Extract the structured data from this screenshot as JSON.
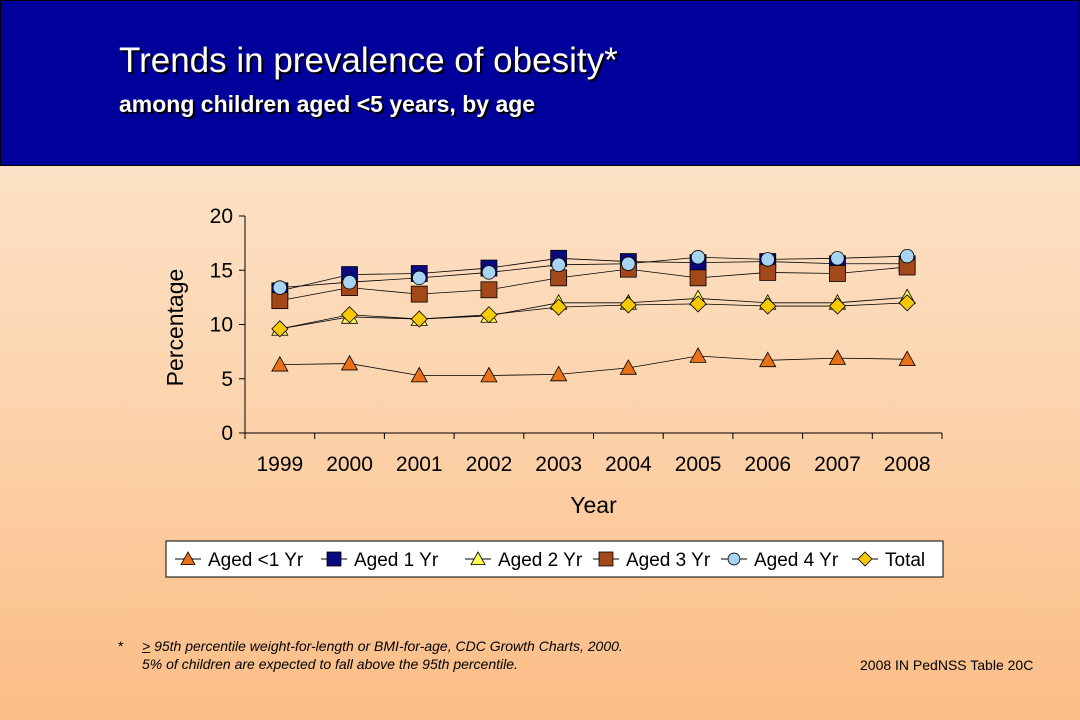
{
  "header": {
    "title": "Trends in prevalence of obesity*",
    "subtitle": "among children aged <5 years, by age"
  },
  "chart_data": {
    "type": "line",
    "title": "",
    "xlabel": "Year",
    "ylabel": "Percentage",
    "x": [
      "1999",
      "2000",
      "2001",
      "2002",
      "2003",
      "2004",
      "2005",
      "2006",
      "2007",
      "2008"
    ],
    "ylim": [
      0,
      20
    ],
    "yticks": [
      "0",
      "5",
      "10",
      "15",
      "20"
    ],
    "grid": false,
    "legend_position": "bottom",
    "series": [
      {
        "name": "Aged <1 Yr",
        "marker": "triangle",
        "color": "#e8711a",
        "values": [
          6.3,
          6.4,
          5.3,
          5.3,
          5.4,
          6.0,
          7.1,
          6.7,
          6.9,
          6.8
        ]
      },
      {
        "name": "Aged 1 Yr",
        "marker": "square",
        "color": "#0a0a80",
        "values": [
          13.1,
          14.6,
          14.7,
          15.2,
          16.1,
          15.8,
          15.7,
          15.8,
          15.6,
          15.6
        ]
      },
      {
        "name": "Aged 2 Yr",
        "marker": "triangle",
        "color": "#ffff55",
        "values": [
          9.6,
          10.7,
          10.5,
          10.8,
          12.0,
          12.0,
          12.4,
          12.0,
          12.0,
          12.5
        ]
      },
      {
        "name": "Aged 3 Yr",
        "marker": "square",
        "color": "#a34818",
        "values": [
          12.2,
          13.4,
          12.8,
          13.2,
          14.3,
          15.1,
          14.3,
          14.8,
          14.7,
          15.3
        ]
      },
      {
        "name": "Aged 4 Yr",
        "marker": "circle",
        "color": "#a8d4f4",
        "values": [
          13.4,
          13.9,
          14.3,
          14.8,
          15.5,
          15.6,
          16.2,
          16.0,
          16.1,
          16.3
        ]
      },
      {
        "name": "Total",
        "marker": "diamond",
        "color": "#f8c800",
        "values": [
          9.6,
          10.9,
          10.5,
          10.9,
          11.6,
          11.8,
          11.9,
          11.7,
          11.7,
          12.0
        ]
      }
    ]
  },
  "footnote": {
    "symbol": "*",
    "ge": ">",
    "line1_rest": " 95th percentile weight-for-length or BMI-for-age, CDC Growth Charts, 2000.",
    "line2": "5% of children are expected to fall above the 95th percentile."
  },
  "source": "2008 IN PedNSS Table 20C"
}
